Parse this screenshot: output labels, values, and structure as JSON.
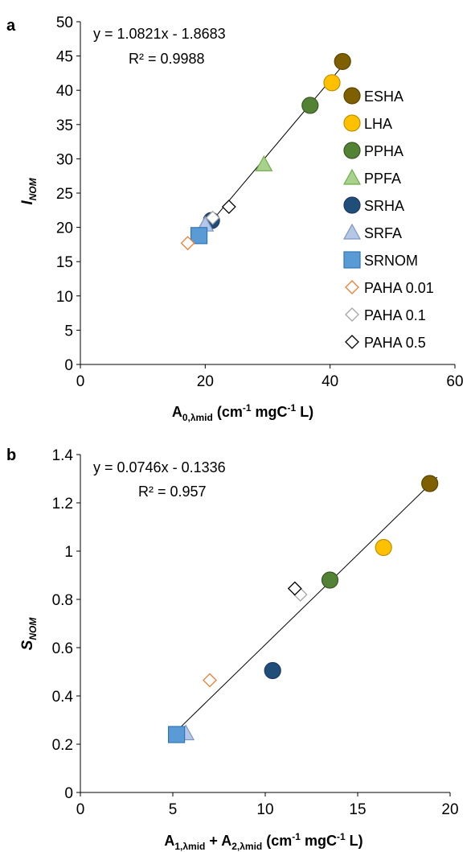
{
  "chart_data": [
    {
      "panel_label": "a",
      "type": "scatter",
      "xlim": [
        0,
        60
      ],
      "ylim": [
        0,
        50
      ],
      "x_ticks": [
        "0",
        "20",
        "40",
        "60"
      ],
      "y_ticks": [
        "0",
        "5",
        "10",
        "15",
        "20",
        "25",
        "30",
        "35",
        "40",
        "45",
        "50"
      ],
      "xlabel": {
        "main": "A",
        "sub": "0,λmid",
        "rest": " (cm",
        "sup1": "-1",
        "mid": " mgC",
        "sup2": "-1",
        "end": " L)"
      },
      "ylabel": {
        "main": "I",
        "sub": "NOM"
      },
      "equation": "y = 1.0821x - 1.8683",
      "r2": "R² = 0.9988",
      "trendline": {
        "slope": 1.0821,
        "intercept": -1.8683,
        "x_range": [
          19,
          42
        ]
      },
      "grid": false,
      "legend_position": "right",
      "series": [
        {
          "name": "ESHA",
          "marker": "circle",
          "fill": "#7f6000",
          "stroke": "#5a4500",
          "points": [
            [
              42.0,
              44.2
            ]
          ]
        },
        {
          "name": "LHA",
          "marker": "circle",
          "fill": "#ffc000",
          "stroke": "#bf9000",
          "points": [
            [
              40.3,
              41.1
            ]
          ]
        },
        {
          "name": "PPHA",
          "marker": "circle",
          "fill": "#548235",
          "stroke": "#385723",
          "points": [
            [
              36.8,
              37.8
            ]
          ]
        },
        {
          "name": "PPFA",
          "marker": "triangle",
          "fill": "#a9d18e",
          "stroke": "#70ad47",
          "points": [
            [
              29.4,
              29.2
            ]
          ]
        },
        {
          "name": "SRHA",
          "marker": "circle",
          "fill": "#1f4e79",
          "stroke": "#1f3864",
          "points": [
            [
              21.0,
              21.0
            ]
          ]
        },
        {
          "name": "SRFA",
          "marker": "triangle",
          "fill": "#b4c7e7",
          "stroke": "#7f96c2",
          "points": [
            [
              20.0,
              20.4
            ]
          ]
        },
        {
          "name": "SRNOM",
          "marker": "square",
          "fill": "#5b9bd5",
          "stroke": "#2e75b6",
          "points": [
            [
              19.0,
              18.8
            ]
          ]
        },
        {
          "name": "PAHA  0.01",
          "marker": "diamond",
          "fill": "#ffffff",
          "stroke": "#ed7d31",
          "points": [
            [
              17.2,
              17.7
            ]
          ]
        },
        {
          "name": "PAHA  0.1",
          "marker": "diamond",
          "fill": "#ffffff",
          "stroke": "#a6a6a6",
          "points": [
            [
              21.2,
              21.4
            ]
          ]
        },
        {
          "name": "PAHA  0.5",
          "marker": "diamond",
          "fill": "#ffffff",
          "stroke": "#000000",
          "points": [
            [
              23.8,
              23.0
            ]
          ]
        }
      ]
    },
    {
      "panel_label": "b",
      "type": "scatter",
      "xlim": [
        0,
        20
      ],
      "ylim": [
        0,
        1.4
      ],
      "x_ticks": [
        "0",
        "5",
        "10",
        "15",
        "20"
      ],
      "y_ticks": [
        "0",
        "0.2",
        "0.4",
        "0.6",
        "0.8",
        "1",
        "1.2",
        "1.4"
      ],
      "xlabel": {
        "a": "A",
        "a_sub": "1,λmid",
        "plus": " + A",
        "b_sub": "2,λmid",
        "rest": " (cm",
        "sup1": "-1",
        "mid": " mgC",
        "sup2": "-1",
        "end": " L)"
      },
      "ylabel": {
        "main": "S",
        "sub": "NOM"
      },
      "equation": "y = 0.0746x - 0.1336",
      "r2": "R² = 0.957",
      "trendline": {
        "slope": 0.0746,
        "intercept": -0.1336,
        "x_range": [
          5.0,
          19.3
        ]
      },
      "grid": false,
      "series": [
        {
          "name": "ESHA",
          "marker": "circle",
          "fill": "#7f6000",
          "stroke": "#5a4500",
          "points": [
            [
              18.9,
              1.28
            ]
          ]
        },
        {
          "name": "LHA",
          "marker": "circle",
          "fill": "#ffc000",
          "stroke": "#bf9000",
          "points": [
            [
              16.4,
              1.015
            ]
          ]
        },
        {
          "name": "PPHA",
          "marker": "circle",
          "fill": "#548235",
          "stroke": "#385723",
          "points": [
            [
              13.5,
              0.88
            ]
          ]
        },
        {
          "name": "SRHA",
          "marker": "circle",
          "fill": "#1f4e79",
          "stroke": "#1f3864",
          "points": [
            [
              10.4,
              0.505
            ]
          ]
        },
        {
          "name": "SRFA",
          "marker": "triangle",
          "fill": "#b4c7e7",
          "stroke": "#7f96c2",
          "points": [
            [
              5.7,
              0.245
            ]
          ]
        },
        {
          "name": "SRNOM",
          "marker": "square",
          "fill": "#5b9bd5",
          "stroke": "#2e75b6",
          "points": [
            [
              5.2,
              0.24
            ]
          ]
        },
        {
          "name": "PAHA  0.01",
          "marker": "diamond",
          "fill": "#ffffff",
          "stroke": "#ed7d31",
          "points": [
            [
              7.0,
              0.465
            ]
          ]
        },
        {
          "name": "PAHA  0.1",
          "marker": "diamond",
          "fill": "#ffffff",
          "stroke": "#a6a6a6",
          "points": [
            [
              11.9,
              0.82
            ]
          ]
        },
        {
          "name": "PAHA  0.5",
          "marker": "diamond",
          "fill": "#ffffff",
          "stroke": "#000000",
          "points": [
            [
              11.6,
              0.845
            ]
          ]
        }
      ]
    }
  ]
}
